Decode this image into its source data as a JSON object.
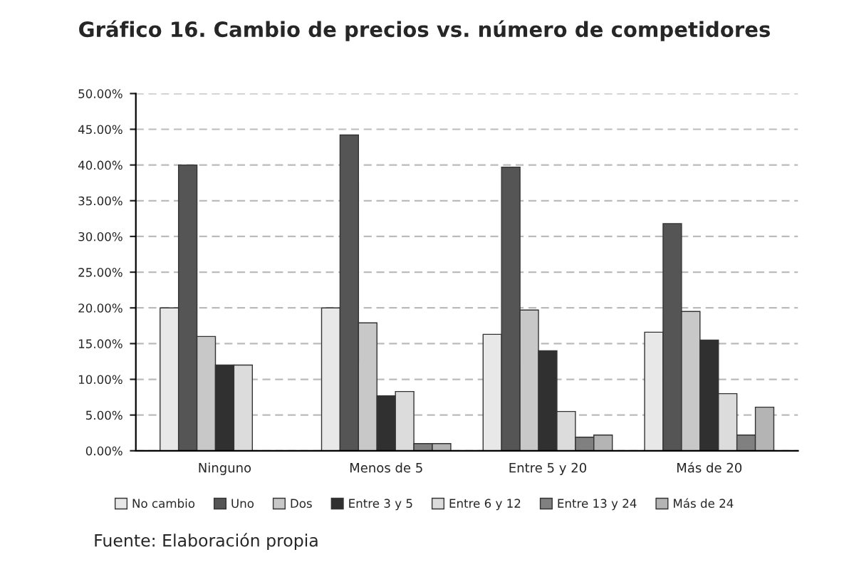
{
  "chart_data": {
    "type": "bar",
    "title": "Gráfico 16. Cambio de precios vs. número de competidores",
    "categories": [
      "Ninguno",
      "Menos de 5",
      "Entre 5 y 20",
      "Más de 20"
    ],
    "series": [
      {
        "name": "No cambio",
        "color": "#e8e8e8",
        "values": [
          20.0,
          20.0,
          16.3,
          16.6
        ]
      },
      {
        "name": "Uno",
        "color": "#555555",
        "values": [
          40.0,
          44.2,
          39.7,
          31.8
        ]
      },
      {
        "name": "Dos",
        "color": "#c8c8c8",
        "values": [
          16.0,
          17.9,
          19.7,
          19.5
        ]
      },
      {
        "name": "Entre 3 y 5",
        "color": "#303030",
        "values": [
          12.0,
          7.7,
          14.0,
          15.5
        ]
      },
      {
        "name": "Entre 6 y 12",
        "color": "#dcdcdc",
        "values": [
          12.0,
          8.3,
          5.5,
          8.0
        ]
      },
      {
        "name": "Entre 13 y 24",
        "color": "#808080",
        "values": [
          null,
          1.0,
          1.9,
          2.2
        ]
      },
      {
        "name": "Más de 24",
        "color": "#b4b4b4",
        "values": [
          null,
          1.0,
          2.2,
          6.1
        ]
      }
    ],
    "ylim": [
      0,
      50
    ],
    "yticks": [
      {
        "value": 0,
        "label": "0.00%"
      },
      {
        "value": 5,
        "label": "5.00%"
      },
      {
        "value": 10,
        "label": "10.00%"
      },
      {
        "value": 15,
        "label": "15.00%"
      },
      {
        "value": 20,
        "label": "20.00%"
      },
      {
        "value": 25,
        "label": "25.00%"
      },
      {
        "value": 30,
        "label": "30.00%"
      },
      {
        "value": 35,
        "label": "35.00%"
      },
      {
        "value": 40,
        "label": "40.00%"
      },
      {
        "value": 45,
        "label": "45.00%"
      },
      {
        "value": 50,
        "label": "50.00%"
      }
    ],
    "grid": "y",
    "legend": "bottom",
    "annotations": [
      "Fuente: Elaboración propia"
    ]
  }
}
